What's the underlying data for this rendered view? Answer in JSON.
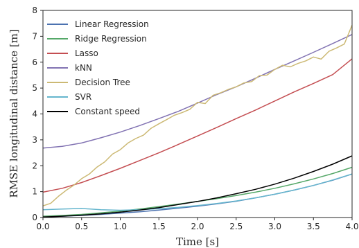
{
  "chart_data": {
    "type": "line",
    "title": "",
    "xlabel": "Time [s]",
    "ylabel": "RMSE longitudinal distance [m]",
    "xlim": [
      0,
      4
    ],
    "ylim": [
      0,
      8
    ],
    "x_ticks": [
      "0.0",
      "0.5",
      "1.0",
      "1.5",
      "2.0",
      "2.5",
      "3.0",
      "3.5",
      "4.0"
    ],
    "y_ticks": [
      "0",
      "1",
      "2",
      "3",
      "4",
      "5",
      "6",
      "7",
      "8"
    ],
    "grid": false,
    "legend_position": "top-left",
    "series": [
      {
        "name": "Linear Regression",
        "color": "#4c72b0",
        "x": [
          0.0,
          0.25,
          0.5,
          0.75,
          1.0,
          1.25,
          1.5,
          1.75,
          2.0,
          2.25,
          2.5,
          2.75,
          3.0,
          3.25,
          3.5,
          3.75,
          4.0
        ],
        "y": [
          0.03,
          0.05,
          0.08,
          0.12,
          0.17,
          0.22,
          0.29,
          0.36,
          0.44,
          0.53,
          0.63,
          0.76,
          0.9,
          1.06,
          1.24,
          1.44,
          1.68
        ]
      },
      {
        "name": "Ridge Regression",
        "color": "#55a868",
        "x": [
          0.0,
          0.25,
          0.5,
          0.75,
          1.0,
          1.25,
          1.5,
          1.75,
          2.0,
          2.25,
          2.5,
          2.75,
          3.0,
          3.25,
          3.5,
          3.75,
          4.0
        ],
        "y": [
          0.05,
          0.08,
          0.12,
          0.18,
          0.25,
          0.33,
          0.42,
          0.52,
          0.62,
          0.73,
          0.85,
          0.98,
          1.13,
          1.3,
          1.49,
          1.7,
          1.94
        ]
      },
      {
        "name": "Lasso",
        "color": "#c44e52",
        "x": [
          0.0,
          0.25,
          0.5,
          0.75,
          1.0,
          1.25,
          1.5,
          1.75,
          2.0,
          2.25,
          2.5,
          2.75,
          3.0,
          3.25,
          3.5,
          3.75,
          4.0
        ],
        "y": [
          0.98,
          1.13,
          1.35,
          1.62,
          1.9,
          2.2,
          2.5,
          2.82,
          3.15,
          3.48,
          3.82,
          4.15,
          4.5,
          4.85,
          5.18,
          5.52,
          6.13
        ]
      },
      {
        "name": "kNN",
        "color": "#8172b2",
        "x": [
          0.0,
          0.25,
          0.5,
          0.75,
          1.0,
          1.25,
          1.5,
          1.75,
          2.0,
          2.25,
          2.5,
          2.75,
          3.0,
          3.25,
          3.5,
          3.75,
          4.0
        ],
        "y": [
          2.68,
          2.75,
          2.88,
          3.08,
          3.3,
          3.55,
          3.82,
          4.1,
          4.42,
          4.75,
          5.05,
          5.38,
          5.72,
          6.05,
          6.38,
          6.72,
          7.07
        ]
      },
      {
        "name": "Decision Tree",
        "color": "#ccb974",
        "x": [
          0.0,
          0.1,
          0.2,
          0.3,
          0.4,
          0.5,
          0.6,
          0.7,
          0.8,
          0.9,
          1.0,
          1.1,
          1.2,
          1.3,
          1.4,
          1.5,
          1.6,
          1.7,
          1.8,
          1.9,
          2.0,
          2.1,
          2.2,
          2.3,
          2.4,
          2.5,
          2.6,
          2.7,
          2.8,
          2.9,
          3.0,
          3.1,
          3.2,
          3.3,
          3.4,
          3.5,
          3.6,
          3.7,
          3.8,
          3.9,
          4.0
        ],
        "y": [
          0.45,
          0.55,
          0.82,
          1.05,
          1.25,
          1.5,
          1.68,
          1.95,
          2.15,
          2.45,
          2.62,
          2.88,
          3.05,
          3.18,
          3.45,
          3.62,
          3.78,
          3.95,
          4.05,
          4.18,
          4.45,
          4.4,
          4.72,
          4.82,
          4.95,
          5.05,
          5.2,
          5.25,
          5.48,
          5.5,
          5.72,
          5.88,
          5.82,
          5.95,
          6.05,
          6.2,
          6.12,
          6.42,
          6.55,
          6.7,
          7.43
        ]
      },
      {
        "name": "SVR",
        "color": "#64b5cd",
        "x": [
          0.0,
          0.25,
          0.5,
          0.75,
          1.0,
          1.25,
          1.5,
          1.75,
          2.0,
          2.25,
          2.5,
          2.75,
          3.0,
          3.25,
          3.5,
          3.75,
          4.0
        ],
        "y": [
          0.3,
          0.33,
          0.35,
          0.3,
          0.28,
          0.3,
          0.34,
          0.39,
          0.46,
          0.54,
          0.64,
          0.76,
          0.9,
          1.06,
          1.24,
          1.45,
          1.68
        ]
      },
      {
        "name": "Constant speed",
        "color": "#000000",
        "x": [
          0.0,
          0.25,
          0.5,
          0.75,
          1.0,
          1.25,
          1.5,
          1.75,
          2.0,
          2.25,
          2.5,
          2.75,
          3.0,
          3.25,
          3.5,
          3.75,
          4.0
        ],
        "y": [
          0.02,
          0.05,
          0.09,
          0.14,
          0.21,
          0.29,
          0.38,
          0.5,
          0.62,
          0.76,
          0.92,
          1.09,
          1.29,
          1.52,
          1.78,
          2.06,
          2.38
        ]
      }
    ]
  }
}
